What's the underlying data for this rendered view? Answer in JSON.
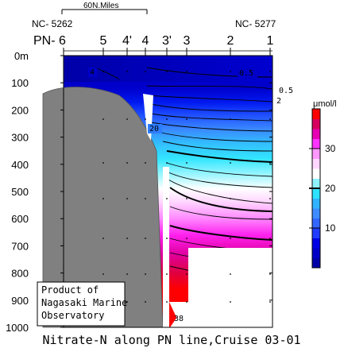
{
  "chart_data": {
    "type": "contour-section",
    "title": "Nitrate-N along PN line,Cruise 03-01",
    "scale_label": "60N.Miles",
    "station_id_left": "NC- 5262",
    "station_id_right": "NC- 5277",
    "line_label": "PN- 6",
    "stations": [
      "5",
      "4'",
      "4",
      "3'",
      "3",
      "2",
      "1"
    ],
    "depth_axis": {
      "unit": "m",
      "range": [
        0,
        1000
      ],
      "ticks": [
        "0m",
        "100",
        "200",
        "300",
        "400",
        "500",
        "600",
        "700",
        "800",
        "900",
        "1000"
      ]
    },
    "colorbar": {
      "unit": "μmol/l",
      "range": [
        0,
        40
      ],
      "ticks": [
        "30",
        "20",
        "10"
      ],
      "colors": [
        "#0000a8",
        "#0000c8",
        "#0000e6",
        "#1f3cff",
        "#3366ff",
        "#3e8cff",
        "#31b4ff",
        "#2ee2ff",
        "#8ff2ff",
        "#ffffff",
        "#ffd6ff",
        "#ff99ff",
        "#ff33ff",
        "#e800b3",
        "#d8005e",
        "#ff0000"
      ]
    },
    "contour_labels": [
      "4",
      "0.5",
      "0.5",
      "2",
      "20",
      "38"
    ],
    "note": [
      "Product of",
      "Nagasaki Marine",
      "Observatory"
    ]
  }
}
